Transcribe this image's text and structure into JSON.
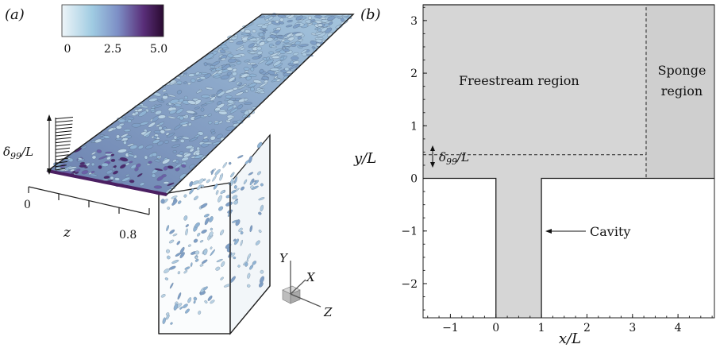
{
  "panel_a": {
    "label": "(a)",
    "colorbar": {
      "ticks": [
        "0",
        "2.5",
        "5.0"
      ],
      "colors": [
        "#e6f0f4",
        "#8ec1dc",
        "#6f6fb6",
        "#4a1b5e",
        "#2d0a33"
      ]
    },
    "delta_label": "δ",
    "delta_sub": "99",
    "delta_tail": "/L",
    "z_axis": {
      "title": "z",
      "tick_start": "0",
      "tick_end": "0.8"
    },
    "triad": {
      "y": "Y",
      "x": "X",
      "z": "Z"
    },
    "vortex_colors": [
      "#aac8df",
      "#8fb3d4",
      "#b9d2e4",
      "#7f9fc6",
      "#6b5fa8",
      "#4b2a6d"
    ]
  },
  "panel_b": {
    "label": "(b)",
    "xlabel": "x/L",
    "ylabel": "y/L",
    "xticks": [
      "−1",
      "0",
      "1",
      "2",
      "3",
      "4"
    ],
    "yticks": [
      "3",
      "2",
      "1",
      "0",
      "−1",
      "−2"
    ],
    "freestream_label": "Freestream region",
    "sponge_label_1": "Sponge",
    "sponge_label_2": "region",
    "delta_label": "δ",
    "delta_sub": "99",
    "delta_tail": "/L",
    "cavity_label": "Cavity",
    "fill_color": "#d6d6d6",
    "sponge_color": "#cfcfcf"
  },
  "chart_data": {
    "type": "diagram",
    "xlim": [
      -1.6,
      4.8
    ],
    "ylim": [
      -2.65,
      3.3
    ],
    "domain_top": 3.3,
    "wall_y": 0,
    "cavity_x": [
      0,
      1
    ],
    "cavity_bottom": -2.65,
    "sponge_x_start": 3.3,
    "boundary_layer_y": 0.45,
    "grid": false
  }
}
